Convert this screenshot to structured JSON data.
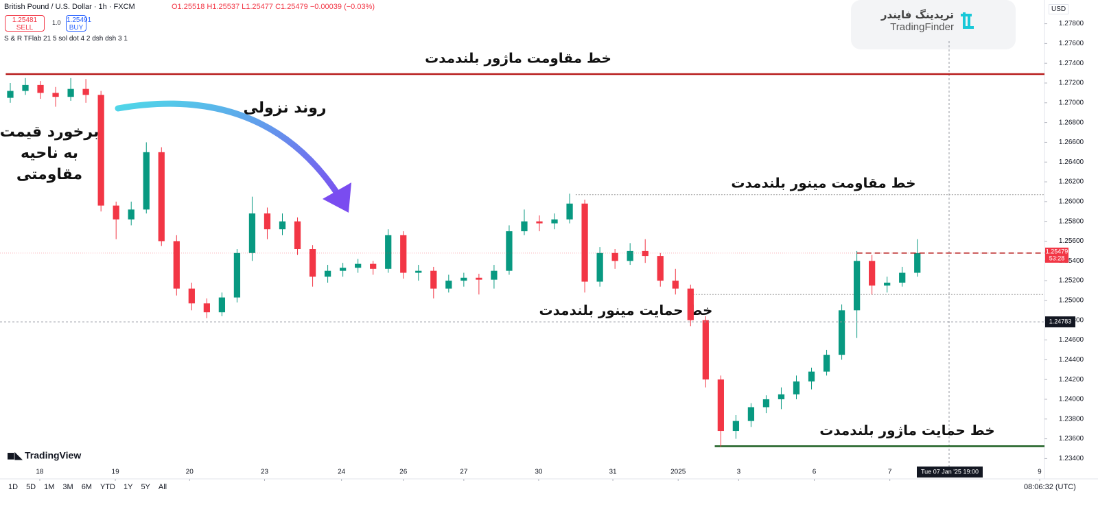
{
  "header": {
    "symbol": "British Pound / U.S. Dollar · 1h · FXCM",
    "ohlc": "O1.25518 H1.25537 L1.25477 C1.25479 −0.00039 (−0.03%)",
    "sell_price": "1.25481",
    "sell": "SELL",
    "lot": "1.0",
    "buy_price": "1.25491",
    "buy": "BUY",
    "indicator": "S & R TFlab 21 5 sol dot 4 2 dsh dsh 3 1",
    "currency": "USD"
  },
  "logo": {
    "fa": "تریدینگ فایندر",
    "en": "TradingFinder"
  },
  "watermark": "TradingView",
  "toolbar": {
    "ranges": [
      "1D",
      "5D",
      "1M",
      "3M",
      "6M",
      "YTD",
      "1Y",
      "5Y",
      "All"
    ],
    "clock": "08:06:32 (UTC)"
  },
  "crosshair": {
    "price": 1.24783,
    "time": "Tue 07 Jan '25   19:00"
  },
  "chart_data": {
    "type": "candlestick",
    "up_color": "#089981",
    "down_color": "#f23645",
    "xlim": [
      -0.68,
      68.41
    ],
    "ylim": [
      1.2325,
      1.2804
    ],
    "xticks": [
      {
        "value": 1.95,
        "label": "18"
      },
      {
        "value": 6.95,
        "label": "19"
      },
      {
        "value": 11.86,
        "label": "20"
      },
      {
        "value": 16.82,
        "label": "23"
      },
      {
        "value": 21.91,
        "label": "24"
      },
      {
        "value": 26,
        "label": "26"
      },
      {
        "value": 30,
        "label": "27"
      },
      {
        "value": 34.95,
        "label": "30"
      },
      {
        "value": 39.86,
        "label": "31"
      },
      {
        "value": 44.18,
        "label": "2025"
      },
      {
        "value": 48.18,
        "label": "3"
      },
      {
        "value": 53.18,
        "label": "6"
      },
      {
        "value": 58.18,
        "label": "7"
      },
      {
        "value": 68.09,
        "label": "9"
      }
    ],
    "yticks": [
      {
        "value": 1.234,
        "label": "1.23400"
      },
      {
        "value": 1.236,
        "label": "1.23600"
      },
      {
        "value": 1.238,
        "label": "1.23800"
      },
      {
        "value": 1.24,
        "label": "1.24000"
      },
      {
        "value": 1.242,
        "label": "1.24200"
      },
      {
        "value": 1.244,
        "label": "1.24400"
      },
      {
        "value": 1.246,
        "label": "1.24600"
      },
      {
        "value": 1.248,
        "label": "1.24800"
      },
      {
        "value": 1.25,
        "label": "1.25000"
      },
      {
        "value": 1.252,
        "label": "1.25200"
      },
      {
        "value": 1.254,
        "label": "1.25400"
      },
      {
        "value": 1.256,
        "label": "1.25600"
      },
      {
        "value": 1.258,
        "label": "1.25800"
      },
      {
        "value": 1.26,
        "label": "1.26000"
      },
      {
        "value": 1.262,
        "label": "1.26200"
      },
      {
        "value": 1.264,
        "label": "1.26400"
      },
      {
        "value": 1.266,
        "label": "1.26600"
      },
      {
        "value": 1.268,
        "label": "1.26800"
      },
      {
        "value": 1.27,
        "label": "1.27000"
      },
      {
        "value": 1.272,
        "label": "1.27200"
      },
      {
        "value": 1.274,
        "label": "1.27400"
      },
      {
        "value": 1.276,
        "label": "1.27600"
      },
      {
        "value": 1.278,
        "label": "1.27800"
      }
    ],
    "grid": false,
    "ohlc": [
      [
        1.2705,
        1.272,
        1.27,
        1.2712
      ],
      [
        1.2712,
        1.2725,
        1.2708,
        1.2718
      ],
      [
        1.2718,
        1.2722,
        1.2704,
        1.271
      ],
      [
        1.271,
        1.2716,
        1.2696,
        1.2706
      ],
      [
        1.2706,
        1.2725,
        1.2702,
        1.2714
      ],
      [
        1.2714,
        1.2724,
        1.27,
        1.2708
      ],
      [
        1.2708,
        1.2712,
        1.259,
        1.2596
      ],
      [
        1.2596,
        1.26,
        1.2562,
        1.2582
      ],
      [
        1.2582,
        1.26,
        1.2576,
        1.2592
      ],
      [
        1.2592,
        1.266,
        1.2588,
        1.265
      ],
      [
        1.265,
        1.2655,
        1.2555,
        1.256
      ],
      [
        1.256,
        1.2566,
        1.2505,
        1.2512
      ],
      [
        1.2512,
        1.2518,
        1.249,
        1.2497
      ],
      [
        1.2497,
        1.2502,
        1.2482,
        1.2488
      ],
      [
        1.2488,
        1.2508,
        1.2484,
        1.2503
      ],
      [
        1.2503,
        1.2552,
        1.2498,
        1.2548
      ],
      [
        1.2548,
        1.2605,
        1.254,
        1.2588
      ],
      [
        1.2588,
        1.2594,
        1.2562,
        1.2572
      ],
      [
        1.2572,
        1.2588,
        1.2566,
        1.258
      ],
      [
        1.258,
        1.2584,
        1.2546,
        1.2552
      ],
      [
        1.2552,
        1.2556,
        1.2514,
        1.2524
      ],
      [
        1.2524,
        1.2536,
        1.2518,
        1.253
      ],
      [
        1.253,
        1.2538,
        1.2524,
        1.2533
      ],
      [
        1.2533,
        1.2542,
        1.2528,
        1.2537
      ],
      [
        1.2537,
        1.254,
        1.2526,
        1.2532
      ],
      [
        1.2532,
        1.2572,
        1.2528,
        1.2566
      ],
      [
        1.2566,
        1.257,
        1.2522,
        1.2528
      ],
      [
        1.2528,
        1.2536,
        1.252,
        1.253
      ],
      [
        1.253,
        1.2534,
        1.2502,
        1.2512
      ],
      [
        1.2512,
        1.2526,
        1.2508,
        1.252
      ],
      [
        1.252,
        1.2528,
        1.2514,
        1.2523
      ],
      [
        1.2523,
        1.2527,
        1.2506,
        1.2521
      ],
      [
        1.2521,
        1.2536,
        1.2512,
        1.253
      ],
      [
        1.253,
        1.2576,
        1.2526,
        1.257
      ],
      [
        1.257,
        1.2592,
        1.2566,
        1.258
      ],
      [
        1.258,
        1.2586,
        1.257,
        1.2578
      ],
      [
        1.2578,
        1.2588,
        1.2572,
        1.2582
      ],
      [
        1.2582,
        1.2608,
        1.2578,
        1.2598
      ],
      [
        1.2598,
        1.2602,
        1.2508,
        1.2519
      ],
      [
        1.2519,
        1.2554,
        1.2514,
        1.2548
      ],
      [
        1.2548,
        1.2552,
        1.2532,
        1.254
      ],
      [
        1.254,
        1.2558,
        1.2536,
        1.255
      ],
      [
        1.255,
        1.2562,
        1.2538,
        1.2545
      ],
      [
        1.2545,
        1.2548,
        1.2514,
        1.252
      ],
      [
        1.252,
        1.2532,
        1.2506,
        1.2512
      ],
      [
        1.2512,
        1.2516,
        1.2474,
        1.248
      ],
      [
        1.248,
        1.2484,
        1.2412,
        1.242
      ],
      [
        1.242,
        1.2424,
        1.2352,
        1.2368
      ],
      [
        1.2368,
        1.2384,
        1.236,
        1.2378
      ],
      [
        1.2378,
        1.2396,
        1.2372,
        1.2392
      ],
      [
        1.2392,
        1.2404,
        1.2386,
        1.24
      ],
      [
        1.24,
        1.2412,
        1.239,
        1.2405
      ],
      [
        1.2405,
        1.2424,
        1.24,
        1.2418
      ],
      [
        1.2418,
        1.2432,
        1.241,
        1.2428
      ],
      [
        1.2428,
        1.245,
        1.2424,
        1.2445
      ],
      [
        1.2445,
        1.2496,
        1.244,
        1.249
      ],
      [
        1.249,
        1.255,
        1.2462,
        1.254
      ],
      [
        1.254,
        1.2546,
        1.2506,
        1.2515
      ],
      [
        1.2515,
        1.2524,
        1.2508,
        1.2518
      ],
      [
        1.2518,
        1.2534,
        1.2514,
        1.2528
      ],
      [
        1.2528,
        1.2562,
        1.2524,
        1.25479
      ]
    ],
    "last_price": 1.25479,
    "countdown": "53:28",
    "levels": [
      {
        "label": "خط مقاومت ماژور بلندمدت",
        "value": 1.2729,
        "color": "#b71c1c",
        "start": -0.3
      },
      {
        "label": "خط مقاومت مینور بلندمدت",
        "value": 1.2607,
        "color": "#9e9e9e",
        "start": 37.4
      },
      {
        "label": "خط حمایت مینور بلندمدت",
        "value": 1.2506,
        "color": "#9e9e9e",
        "start": 44.8
      },
      {
        "label": "خط حمایت ماژور بلندمدت",
        "value": 1.23525,
        "color": "#1b5e20",
        "start": 46.6
      }
    ],
    "annotations": {
      "trend": "روند نزولی",
      "touch": [
        "برخورد قیمت",
        "به ناحیه",
        "مقاومتی"
      ]
    }
  }
}
